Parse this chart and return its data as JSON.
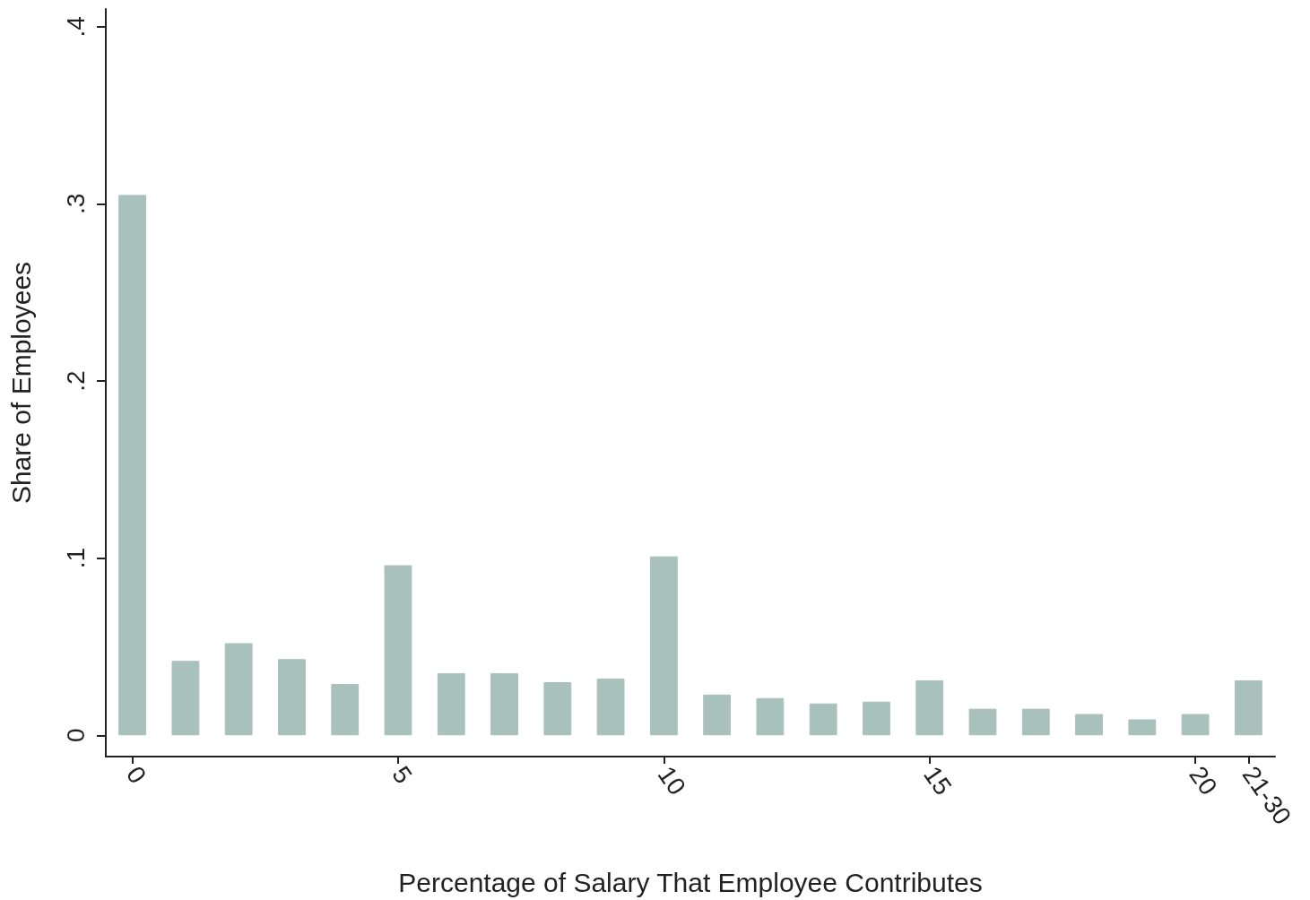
{
  "chart_data": {
    "type": "bar",
    "xlabel": "Percentage of Salary That Employee Contributes",
    "ylabel": "Share of Employees",
    "categories": [
      "0",
      null,
      null,
      null,
      null,
      "5",
      null,
      null,
      null,
      null,
      "10",
      null,
      null,
      null,
      null,
      "15",
      null,
      null,
      null,
      null,
      "20",
      "21-30"
    ],
    "values": [
      0.305,
      0.042,
      0.052,
      0.043,
      0.029,
      0.096,
      0.035,
      0.035,
      0.03,
      0.032,
      0.101,
      0.023,
      0.021,
      0.018,
      0.019,
      0.031,
      0.015,
      0.015,
      0.012,
      0.009,
      0.012,
      0.031
    ],
    "color": "#a9c1bb",
    "ylim": [
      -0.012,
      0.41
    ],
    "yticks": [
      0,
      {
        "value": 0.1,
        "label": ".1"
      },
      {
        "value": 0.2,
        "label": ".2"
      },
      {
        "value": 0.3,
        "label": ".3"
      },
      {
        "value": 0.4,
        "label": ".4"
      }
    ],
    "grid": false
  }
}
